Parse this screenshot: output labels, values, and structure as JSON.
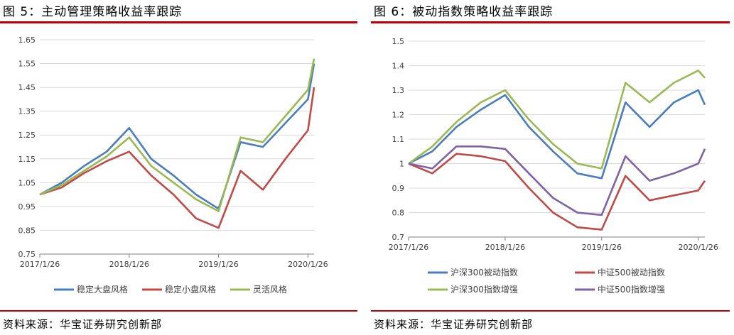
{
  "left": {
    "title": "图 5：主动管理策略收益率跟踪",
    "source": "资料来源：华宝证券研究创新部",
    "chart_data": {
      "type": "line",
      "x": [
        "2017/1/26",
        "2017/4/26",
        "2017/7/26",
        "2017/10/26",
        "2018/1/26",
        "2018/4/26",
        "2018/7/26",
        "2018/10/26",
        "2019/1/26",
        "2019/4/26",
        "2019/7/26",
        "2019/10/26",
        "2020/1/26",
        "2020/2/20"
      ],
      "x_ticks": [
        "2017/1/26",
        "2018/1/26",
        "2019/1/26",
        "2020/1/26"
      ],
      "ylim": [
        0.75,
        1.65
      ],
      "y_ticks": [
        "0.75",
        "0.85",
        "0.95",
        "1.05",
        "1.15",
        "1.25",
        "1.35",
        "1.45",
        "1.55",
        "1.65"
      ],
      "grid": true,
      "legend_position": "bottom",
      "series": [
        {
          "name": "稳定大盘风格",
          "color": "#4a7ebb",
          "values": [
            1.0,
            1.05,
            1.12,
            1.18,
            1.28,
            1.15,
            1.08,
            1.0,
            0.94,
            1.22,
            1.2,
            1.3,
            1.4,
            1.55
          ]
        },
        {
          "name": "稳定小盘风格",
          "color": "#be4b48",
          "values": [
            1.0,
            1.03,
            1.09,
            1.14,
            1.18,
            1.08,
            1.0,
            0.9,
            0.86,
            1.1,
            1.02,
            1.15,
            1.27,
            1.45
          ]
        },
        {
          "name": "灵活风格",
          "color": "#98b954",
          "values": [
            1.0,
            1.04,
            1.1,
            1.16,
            1.24,
            1.12,
            1.05,
            0.98,
            0.93,
            1.24,
            1.22,
            1.33,
            1.44,
            1.57
          ]
        }
      ]
    }
  },
  "right": {
    "title": "图 6：被动指数策略收益率跟踪",
    "source": "资料来源：华宝证券研究创新部",
    "chart_data": {
      "type": "line",
      "x": [
        "2017/1/26",
        "2017/4/26",
        "2017/7/26",
        "2017/10/26",
        "2018/1/26",
        "2018/4/26",
        "2018/7/26",
        "2018/10/26",
        "2019/1/26",
        "2019/4/26",
        "2019/7/26",
        "2019/10/26",
        "2020/1/26",
        "2020/2/20"
      ],
      "x_ticks": [
        "2017/1/26",
        "2018/1/26",
        "2019/1/26",
        "2020/1/26"
      ],
      "ylim": [
        0.7,
        1.5
      ],
      "y_ticks": [
        "0.7",
        "0.8",
        "0.9",
        "1",
        "1.1",
        "1.2",
        "1.3",
        "1.4",
        "1.5"
      ],
      "grid": true,
      "legend_position": "bottom",
      "series": [
        {
          "name": "沪深300被动指数",
          "color": "#4a7ebb",
          "values": [
            1.0,
            1.05,
            1.15,
            1.22,
            1.28,
            1.15,
            1.05,
            0.96,
            0.94,
            1.25,
            1.15,
            1.25,
            1.3,
            1.24
          ]
        },
        {
          "name": "中证500被动指数",
          "color": "#be4b48",
          "values": [
            1.0,
            0.96,
            1.04,
            1.03,
            1.01,
            0.9,
            0.8,
            0.74,
            0.73,
            0.95,
            0.85,
            0.87,
            0.89,
            0.93
          ]
        },
        {
          "name": "沪深300指数增强",
          "color": "#98b954",
          "values": [
            1.0,
            1.07,
            1.17,
            1.25,
            1.3,
            1.18,
            1.08,
            1.0,
            0.98,
            1.33,
            1.25,
            1.33,
            1.38,
            1.35
          ]
        },
        {
          "name": "中证500指数增强",
          "color": "#7e62a1",
          "values": [
            1.0,
            0.98,
            1.07,
            1.07,
            1.06,
            0.96,
            0.86,
            0.8,
            0.79,
            1.03,
            0.93,
            0.96,
            1.0,
            1.06
          ]
        }
      ]
    }
  }
}
